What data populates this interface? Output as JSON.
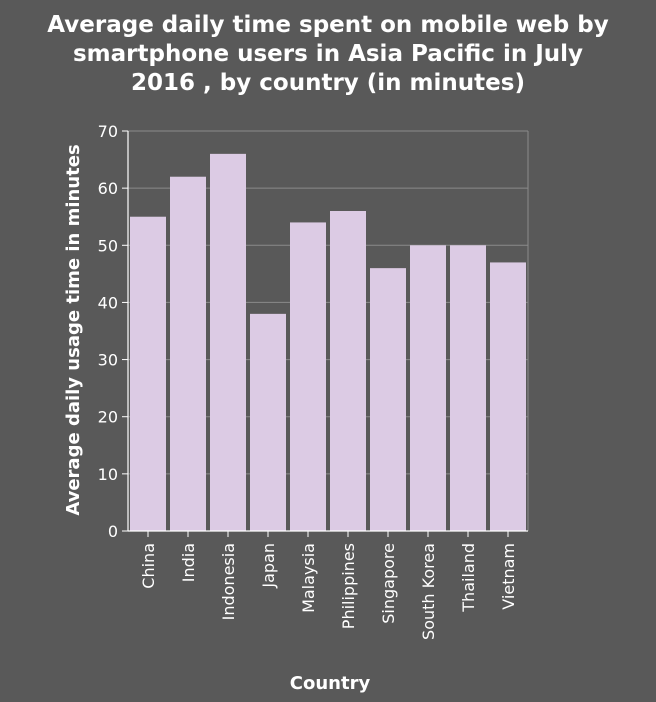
{
  "chart_data": {
    "type": "bar",
    "title_lines": [
      "Average daily time spent on mobile web by",
      "smartphone users in Asia Pacific in July",
      "2016 , by country (in minutes)"
    ],
    "xlabel": "Country",
    "ylabel": "Average daily usage time in minutes",
    "categories": [
      "China",
      "India",
      "Indonesia",
      "Japan",
      "Malaysia",
      "Philippines",
      "Singapore",
      "South Korea",
      "Thailand",
      "Vietnam"
    ],
    "values": [
      55,
      62,
      66,
      38,
      54,
      56,
      46,
      50,
      50,
      47
    ],
    "ylim": [
      0,
      70
    ],
    "yticks": [
      0,
      10,
      20,
      30,
      40,
      50,
      60,
      70
    ],
    "grid": true,
    "colors": {
      "background": "#595959",
      "bar": "#dccbe4",
      "grid": "#8a8a8a",
      "axis": "#ffffff",
      "text": "#ffffff"
    }
  }
}
